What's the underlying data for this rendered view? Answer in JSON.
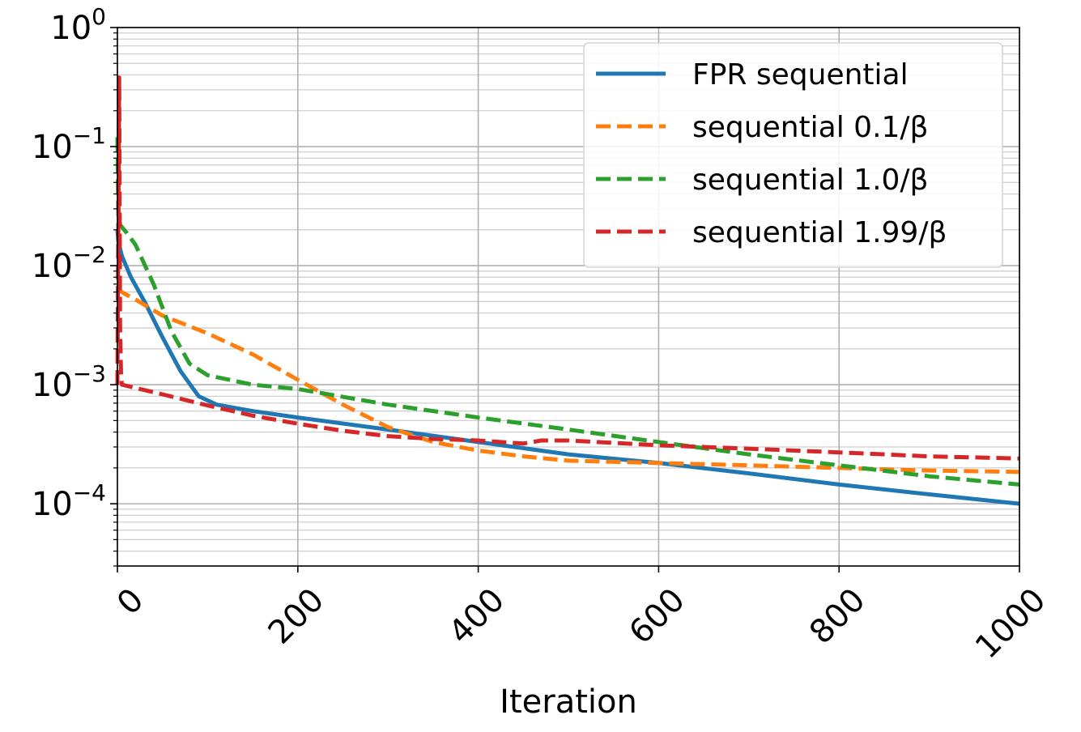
{
  "chart_data": {
    "type": "line",
    "xlabel": "Iteration",
    "ylabel": "",
    "xlim": [
      0,
      1000
    ],
    "ylim": [
      3e-05,
      1
    ],
    "yscale": "log",
    "grid": true,
    "minor_grid": true,
    "legend_position": "top-right",
    "x_ticks": [
      0,
      200,
      400,
      600,
      800,
      1000
    ],
    "x_tick_labels": [
      "0",
      "200",
      "400",
      "600",
      "800",
      "1000"
    ],
    "y_ticks": [
      0.0001,
      0.001,
      0.01,
      0.1,
      1
    ],
    "y_tick_labels": [
      {
        "base": "10",
        "exp": "−4"
      },
      {
        "base": "10",
        "exp": "−3"
      },
      {
        "base": "10",
        "exp": "−2"
      },
      {
        "base": "10",
        "exp": "−1"
      },
      {
        "base": "10",
        "exp": "0"
      }
    ],
    "series": [
      {
        "name": "FPR sequential",
        "color": "#1f77b4",
        "style": "solid",
        "x": [
          0,
          1,
          5,
          15,
          30,
          50,
          70,
          90,
          110,
          150,
          200,
          300,
          400,
          500,
          600,
          700,
          800,
          900,
          1000
        ],
        "y": [
          0.02,
          0.016,
          0.012,
          0.008,
          0.005,
          0.0025,
          0.0013,
          0.0008,
          0.00068,
          0.0006,
          0.00053,
          0.00042,
          0.00033,
          0.00026,
          0.00022,
          0.00018,
          0.000145,
          0.00012,
          0.0001
        ]
      },
      {
        "name": "sequential 0.1/β",
        "color": "#ff7f0e",
        "style": "dashed",
        "x": [
          0,
          2,
          5,
          10,
          20,
          50,
          100,
          150,
          200,
          250,
          300,
          350,
          400,
          450,
          500,
          600,
          700,
          800,
          900,
          1000
        ],
        "y": [
          0.006,
          0.0062,
          0.006,
          0.0057,
          0.0052,
          0.0038,
          0.0027,
          0.0018,
          0.0011,
          0.00068,
          0.00044,
          0.00033,
          0.00028,
          0.00025,
          0.00023,
          0.00022,
          0.00021,
          0.0002,
          0.00019,
          0.000185
        ]
      },
      {
        "name": "sequential 1.0/β",
        "color": "#2ca02c",
        "style": "dashed",
        "x": [
          0,
          1,
          3,
          10,
          20,
          40,
          60,
          80,
          100,
          150,
          200,
          300,
          400,
          500,
          600,
          700,
          800,
          900,
          1000
        ],
        "y": [
          0.12,
          0.03,
          0.022,
          0.019,
          0.015,
          0.007,
          0.0028,
          0.0015,
          0.0012,
          0.001,
          0.00092,
          0.00068,
          0.00053,
          0.00042,
          0.00033,
          0.00026,
          0.00021,
          0.00017,
          0.000145
        ]
      },
      {
        "name": "sequential 1.99/β",
        "color": "#d62728",
        "style": "dashed",
        "x": [
          0,
          2,
          3,
          4,
          5,
          50,
          100,
          150,
          200,
          250,
          300,
          350,
          400,
          450,
          460,
          470,
          500,
          600,
          700,
          800,
          900,
          1000
        ],
        "y": [
          0.001,
          0.38,
          0.003,
          0.0012,
          0.001,
          0.00083,
          0.00067,
          0.00055,
          0.00047,
          0.00041,
          0.00037,
          0.00035,
          0.00034,
          0.00032,
          0.00033,
          0.00034,
          0.00034,
          0.00031,
          0.00029,
          0.00027,
          0.00025,
          0.00024
        ]
      }
    ],
    "legend": [
      {
        "text": "FPR sequential",
        "series": 0
      },
      {
        "text": "sequential 0.1/β",
        "series": 1
      },
      {
        "text": "sequential 1.0/β",
        "series": 2
      },
      {
        "text": "sequential 1.99/β",
        "series": 3
      }
    ]
  }
}
